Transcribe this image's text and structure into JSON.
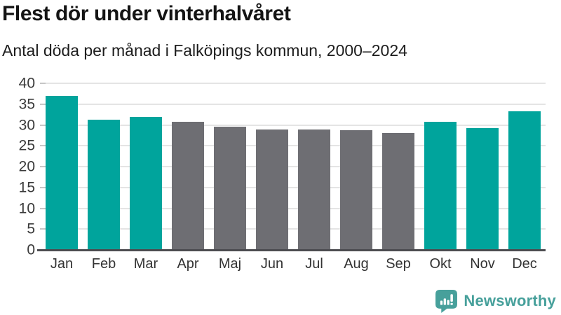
{
  "header": {
    "title": "Flest dör under vinterhalvåret",
    "subtitle": "Antal döda per månad i Falköpings kommun, 2000–2024"
  },
  "chart_data": {
    "type": "bar",
    "title": "Flest dör under vinterhalvåret",
    "subtitle": "Antal döda per månad i Falköpings kommun, 2000–2024",
    "categories": [
      "Jan",
      "Feb",
      "Mar",
      "Apr",
      "Maj",
      "Jun",
      "Jul",
      "Aug",
      "Sep",
      "Okt",
      "Nov",
      "Dec"
    ],
    "values": [
      36.9,
      31.3,
      32.0,
      30.8,
      29.5,
      28.9,
      28.9,
      28.8,
      28.1,
      30.8,
      29.2,
      33.3
    ],
    "highlighted": [
      true,
      true,
      true,
      false,
      false,
      false,
      false,
      false,
      false,
      true,
      true,
      true
    ],
    "xlabel": "",
    "ylabel": "",
    "ylim": [
      0,
      40
    ],
    "yticks": [
      0,
      5,
      10,
      15,
      20,
      25,
      30,
      35,
      40
    ],
    "grid": "horizontal",
    "legend": "none",
    "highlight_color": "#00a49c",
    "base_color": "#6e6e73"
  },
  "branding": {
    "name": "Newsworthy",
    "logo_icon": "bar-chart-speech-bubble",
    "color": "#47a09b"
  }
}
